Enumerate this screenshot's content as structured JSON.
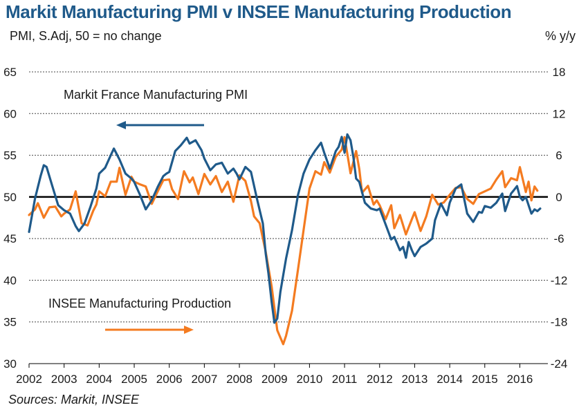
{
  "title": "Markit Manufacturing PMI v INSEE Manufacturing Production",
  "left_axis_label": "PMI, S.Adj, 50 = no change",
  "right_axis_label": "% y/y",
  "sources": "Sources: Markit, INSEE",
  "colors": {
    "pmi": "#1f5a8a",
    "production": "#f47b20",
    "title": "#1f5a8a",
    "zero_line": "#000000",
    "grid": "#444444"
  },
  "chart_data": {
    "type": "line",
    "title": "Markit Manufacturing PMI v INSEE Manufacturing Production",
    "grid": "horizontal dashed",
    "x_axis": {
      "range": [
        2002.0,
        2016.8
      ],
      "ticks": [
        "2002",
        "2003",
        "2004",
        "2005",
        "2006",
        "2007",
        "2008",
        "2009",
        "2010",
        "2011",
        "2012",
        "2013",
        "2014",
        "2015",
        "2016"
      ]
    },
    "y_left": {
      "label": "PMI, S.Adj, 50 = no change",
      "range": [
        30,
        65
      ],
      "ticks": [
        30,
        35,
        40,
        45,
        50,
        55,
        60,
        65
      ]
    },
    "y_right": {
      "label": "% y/y",
      "range": [
        -24,
        18
      ],
      "ticks": [
        -24,
        -18,
        -12,
        -6,
        0,
        6,
        12,
        18
      ]
    },
    "annotations": [
      {
        "text": "Markit France Manufacturing PMI",
        "arrow": "left",
        "series": "Markit France Manufacturing PMI"
      },
      {
        "text": "INSEE Manufacturing Production",
        "arrow": "right",
        "series": "INSEE Manufacturing Production"
      }
    ],
    "series": [
      {
        "name": "Markit France Manufacturing PMI",
        "axis": "left",
        "color": "#1f5a8a",
        "points": [
          [
            2002.0,
            45.8
          ],
          [
            2002.17,
            49.8
          ],
          [
            2002.33,
            52.5
          ],
          [
            2002.42,
            53.8
          ],
          [
            2002.5,
            53.6
          ],
          [
            2002.67,
            51.2
          ],
          [
            2002.83,
            49.0
          ],
          [
            2003.0,
            48.4
          ],
          [
            2003.17,
            48.0
          ],
          [
            2003.33,
            46.5
          ],
          [
            2003.42,
            45.9
          ],
          [
            2003.58,
            46.8
          ],
          [
            2003.75,
            48.8
          ],
          [
            2003.92,
            51.0
          ],
          [
            2004.0,
            52.8
          ],
          [
            2004.17,
            53.5
          ],
          [
            2004.33,
            55.0
          ],
          [
            2004.42,
            55.8
          ],
          [
            2004.58,
            54.5
          ],
          [
            2004.75,
            52.8
          ],
          [
            2004.92,
            52.2
          ],
          [
            2005.0,
            51.8
          ],
          [
            2005.17,
            50.2
          ],
          [
            2005.33,
            48.5
          ],
          [
            2005.5,
            49.6
          ],
          [
            2005.67,
            51.2
          ],
          [
            2005.83,
            52.5
          ],
          [
            2005.92,
            52.8
          ],
          [
            2006.0,
            53.0
          ],
          [
            2006.17,
            55.5
          ],
          [
            2006.33,
            56.2
          ],
          [
            2006.5,
            57.1
          ],
          [
            2006.58,
            56.4
          ],
          [
            2006.75,
            56.8
          ],
          [
            2006.92,
            55.6
          ],
          [
            2007.0,
            54.6
          ],
          [
            2007.17,
            53.2
          ],
          [
            2007.33,
            53.9
          ],
          [
            2007.5,
            54.1
          ],
          [
            2007.67,
            52.8
          ],
          [
            2007.83,
            53.4
          ],
          [
            2007.92,
            52.8
          ],
          [
            2008.0,
            52.1
          ],
          [
            2008.17,
            53.6
          ],
          [
            2008.33,
            53.0
          ],
          [
            2008.5,
            49.8
          ],
          [
            2008.67,
            46.8
          ],
          [
            2008.75,
            43.2
          ],
          [
            2008.83,
            40.8
          ],
          [
            2008.92,
            37.4
          ],
          [
            2009.0,
            34.9
          ],
          [
            2009.08,
            35.4
          ],
          [
            2009.17,
            38.6
          ],
          [
            2009.33,
            42.6
          ],
          [
            2009.5,
            46.0
          ],
          [
            2009.67,
            50.2
          ],
          [
            2009.83,
            52.8
          ],
          [
            2010.0,
            54.5
          ],
          [
            2010.17,
            55.6
          ],
          [
            2010.33,
            56.5
          ],
          [
            2010.42,
            55.3
          ],
          [
            2010.58,
            53.4
          ],
          [
            2010.75,
            55.5
          ],
          [
            2010.83,
            56.0
          ],
          [
            2010.92,
            57.2
          ],
          [
            2011.0,
            55.3
          ],
          [
            2011.08,
            57.5
          ],
          [
            2011.17,
            56.8
          ],
          [
            2011.25,
            54.8
          ],
          [
            2011.33,
            52.2
          ],
          [
            2011.42,
            51.8
          ],
          [
            2011.58,
            49.3
          ],
          [
            2011.75,
            48.6
          ],
          [
            2011.92,
            48.4
          ],
          [
            2012.0,
            48.6
          ],
          [
            2012.17,
            46.7
          ],
          [
            2012.33,
            44.9
          ],
          [
            2012.42,
            45.2
          ],
          [
            2012.58,
            43.6
          ],
          [
            2012.67,
            44.0
          ],
          [
            2012.75,
            42.7
          ],
          [
            2012.83,
            44.6
          ],
          [
            2012.92,
            43.6
          ],
          [
            2013.0,
            42.9
          ],
          [
            2013.17,
            44.0
          ],
          [
            2013.33,
            44.4
          ],
          [
            2013.5,
            45.0
          ],
          [
            2013.58,
            47.2
          ],
          [
            2013.75,
            49.2
          ],
          [
            2013.92,
            47.8
          ],
          [
            2014.0,
            49.3
          ],
          [
            2014.17,
            51.0
          ],
          [
            2014.33,
            51.5
          ],
          [
            2014.42,
            49.6
          ],
          [
            2014.5,
            48.0
          ],
          [
            2014.67,
            47.0
          ],
          [
            2014.83,
            48.2
          ],
          [
            2014.92,
            48.1
          ],
          [
            2015.0,
            48.9
          ],
          [
            2015.17,
            48.7
          ],
          [
            2015.33,
            49.3
          ],
          [
            2015.5,
            50.4
          ],
          [
            2015.58,
            48.3
          ],
          [
            2015.75,
            50.4
          ],
          [
            2015.83,
            50.8
          ],
          [
            2015.92,
            51.3
          ],
          [
            2016.0,
            50.0
          ],
          [
            2016.08,
            49.6
          ],
          [
            2016.17,
            50.0
          ],
          [
            2016.33,
            48.0
          ],
          [
            2016.42,
            48.5
          ],
          [
            2016.5,
            48.3
          ],
          [
            2016.58,
            48.6
          ]
        ]
      },
      {
        "name": "INSEE Manufacturing Production",
        "axis": "right",
        "color": "#f47b20",
        "points": [
          [
            2002.0,
            -2.6
          ],
          [
            2002.17,
            -1.8
          ],
          [
            2002.25,
            -0.9
          ],
          [
            2002.42,
            -3.0
          ],
          [
            2002.58,
            -1.5
          ],
          [
            2002.75,
            -1.4
          ],
          [
            2002.92,
            -2.8
          ],
          [
            2003.0,
            -2.4
          ],
          [
            2003.17,
            -1.8
          ],
          [
            2003.33,
            0.8
          ],
          [
            2003.5,
            -3.8
          ],
          [
            2003.67,
            -4.1
          ],
          [
            2003.83,
            -2.0
          ],
          [
            2003.92,
            -1.1
          ],
          [
            2004.0,
            0.8
          ],
          [
            2004.17,
            0.1
          ],
          [
            2004.33,
            2.2
          ],
          [
            2004.5,
            2.2
          ],
          [
            2004.58,
            4.2
          ],
          [
            2004.75,
            0.3
          ],
          [
            2004.92,
            2.9
          ],
          [
            2005.0,
            2.2
          ],
          [
            2005.17,
            1.8
          ],
          [
            2005.33,
            1.5
          ],
          [
            2005.5,
            -1.0
          ],
          [
            2005.67,
            0.8
          ],
          [
            2005.83,
            2.4
          ],
          [
            2006.0,
            2.5
          ],
          [
            2006.08,
            1.1
          ],
          [
            2006.25,
            -0.3
          ],
          [
            2006.42,
            3.7
          ],
          [
            2006.58,
            2.1
          ],
          [
            2006.67,
            2.8
          ],
          [
            2006.83,
            0.4
          ],
          [
            2007.0,
            3.3
          ],
          [
            2007.17,
            1.8
          ],
          [
            2007.33,
            3.0
          ],
          [
            2007.5,
            0.7
          ],
          [
            2007.67,
            2.2
          ],
          [
            2007.83,
            -0.7
          ],
          [
            2008.0,
            3.1
          ],
          [
            2008.17,
            2.3
          ],
          [
            2008.33,
            -0.6
          ],
          [
            2008.42,
            -2.8
          ],
          [
            2008.58,
            -3.8
          ],
          [
            2008.75,
            -7.9
          ],
          [
            2008.92,
            -12.9
          ],
          [
            2009.08,
            -19.2
          ],
          [
            2009.25,
            -21.2
          ],
          [
            2009.33,
            -20.0
          ],
          [
            2009.5,
            -16.4
          ],
          [
            2009.67,
            -10.5
          ],
          [
            2009.83,
            -4.8
          ],
          [
            2010.0,
            1.2
          ],
          [
            2010.17,
            3.7
          ],
          [
            2010.33,
            3.2
          ],
          [
            2010.42,
            5.0
          ],
          [
            2010.58,
            3.5
          ],
          [
            2010.75,
            5.8
          ],
          [
            2010.92,
            6.8
          ],
          [
            2011.0,
            8.6
          ],
          [
            2011.17,
            3.4
          ],
          [
            2011.33,
            6.6
          ],
          [
            2011.42,
            4.0
          ],
          [
            2011.5,
            0.6
          ],
          [
            2011.67,
            1.6
          ],
          [
            2011.83,
            -1.1
          ],
          [
            2011.92,
            -0.5
          ],
          [
            2012.0,
            -1.2
          ],
          [
            2012.17,
            -3.2
          ],
          [
            2012.33,
            -1.2
          ],
          [
            2012.42,
            -4.5
          ],
          [
            2012.58,
            -2.6
          ],
          [
            2012.75,
            -5.4
          ],
          [
            2012.92,
            -3.2
          ],
          [
            2013.0,
            -2.2
          ],
          [
            2013.17,
            -4.9
          ],
          [
            2013.33,
            -2.8
          ],
          [
            2013.5,
            0.3
          ],
          [
            2013.67,
            -1.1
          ],
          [
            2013.83,
            -0.8
          ],
          [
            2014.0,
            0.3
          ],
          [
            2014.17,
            1.3
          ],
          [
            2014.33,
            1.4
          ],
          [
            2014.5,
            -0.3
          ],
          [
            2014.67,
            -1.0
          ],
          [
            2014.83,
            0.4
          ],
          [
            2015.0,
            0.8
          ],
          [
            2015.17,
            1.2
          ],
          [
            2015.33,
            2.5
          ],
          [
            2015.5,
            3.7
          ],
          [
            2015.58,
            1.4
          ],
          [
            2015.75,
            2.7
          ],
          [
            2015.92,
            2.4
          ],
          [
            2016.0,
            4.3
          ],
          [
            2016.17,
            0.7
          ],
          [
            2016.25,
            2.2
          ],
          [
            2016.33,
            -0.5
          ],
          [
            2016.42,
            1.5
          ],
          [
            2016.5,
            0.9
          ]
        ]
      }
    ]
  }
}
